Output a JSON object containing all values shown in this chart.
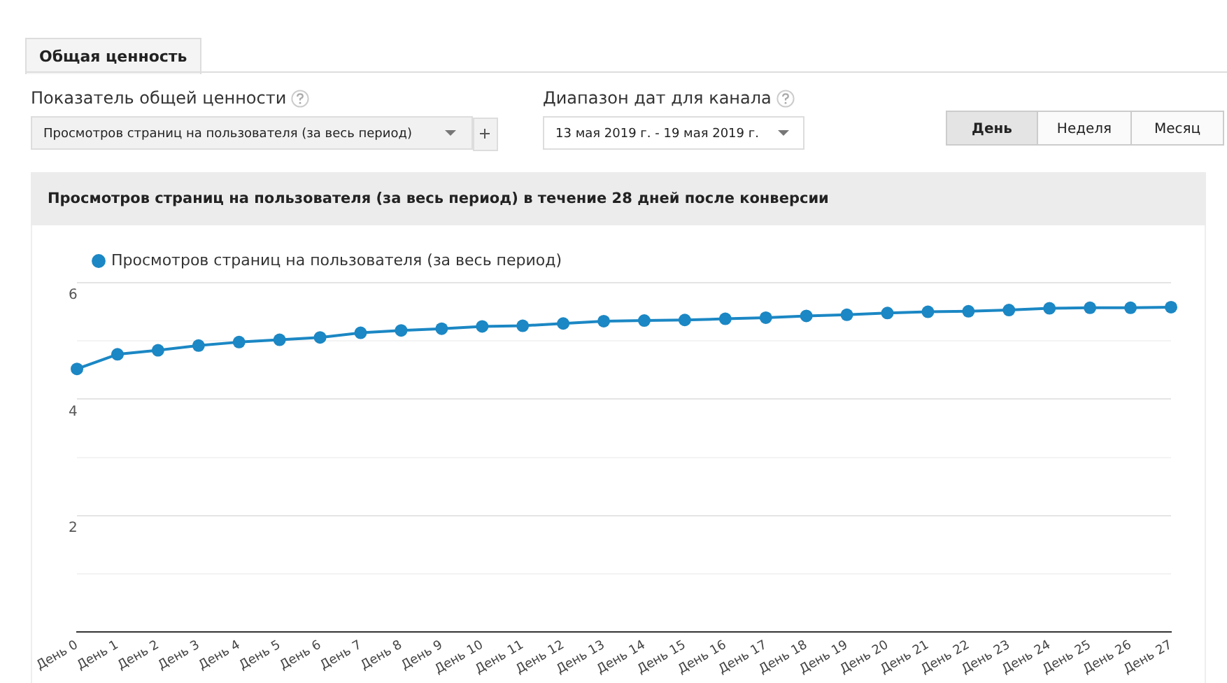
{
  "chart_data": {
    "type": "line",
    "title": "Просмотров страниц на пользователя (за весь период) в течение 28 дней после конверсии",
    "annotations": [
      "Общая ценность",
      "Показатель общей ценности",
      "Просмотров страниц на пользователя (за весь период)",
      "Диапазон дат для канала",
      "13 мая 2019 г. - 19 мая 2019 г.",
      "День",
      "Неделя",
      "Месяц"
    ],
    "categories": [
      "День 0",
      "День 1",
      "День 2",
      "День 3",
      "День 4",
      "День 5",
      "День 6",
      "День 7",
      "День 8",
      "День 9",
      "День 10",
      "День 11",
      "День 12",
      "День 13",
      "День 14",
      "День 15",
      "День 16",
      "День 17",
      "День 18",
      "День 19",
      "День 20",
      "День 21",
      "День 22",
      "День 23",
      "День 24",
      "День 25",
      "День 26",
      "День 27"
    ],
    "series": [
      {
        "name": "Просмотров страниц на пользователя (за весь период)",
        "color": "#1b87c4",
        "values": [
          4.52,
          4.77,
          4.84,
          4.92,
          4.98,
          5.02,
          5.06,
          5.14,
          5.18,
          5.21,
          5.25,
          5.26,
          5.3,
          5.34,
          5.35,
          5.36,
          5.38,
          5.4,
          5.43,
          5.45,
          5.48,
          5.5,
          5.51,
          5.53,
          5.56,
          5.57,
          5.57,
          5.58
        ]
      }
    ],
    "ylim": [
      0,
      6
    ],
    "yticks": [
      {
        "value": 0,
        "label": null
      },
      {
        "value": 1,
        "label": null
      },
      2,
      {
        "value": 3,
        "label": null
      },
      4,
      {
        "value": 5,
        "label": null
      },
      6
    ],
    "grid": "y",
    "legend": "top left",
    "marker": "circle",
    "line_style": "solid"
  }
}
